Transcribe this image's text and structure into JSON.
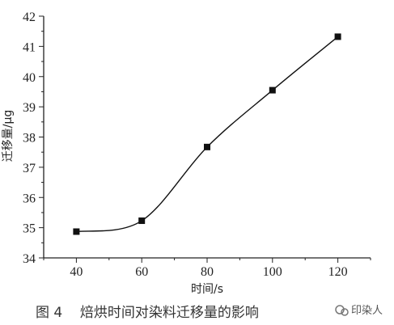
{
  "chart_data": {
    "type": "scatter",
    "xlabel": "时间/s",
    "ylabel": "迁移量/μg",
    "xlim": [
      30,
      130
    ],
    "ylim": [
      34,
      42
    ],
    "xticks": [
      40,
      60,
      80,
      100,
      120
    ],
    "yticks": [
      34,
      35,
      36,
      37,
      38,
      39,
      40,
      41,
      42
    ],
    "grid": false,
    "series": [
      {
        "x": [
          40,
          60,
          80,
          100,
          120
        ],
        "y": [
          34.87,
          35.23,
          37.67,
          39.55,
          41.32
        ],
        "marker": "square",
        "fit_line": true
      }
    ],
    "caption": "图 4    焙烘时间对染料迁移量的影响",
    "watermark": "印染人"
  },
  "colors": {
    "axis": "#222222",
    "series": "#111111",
    "caption": "#333333"
  }
}
